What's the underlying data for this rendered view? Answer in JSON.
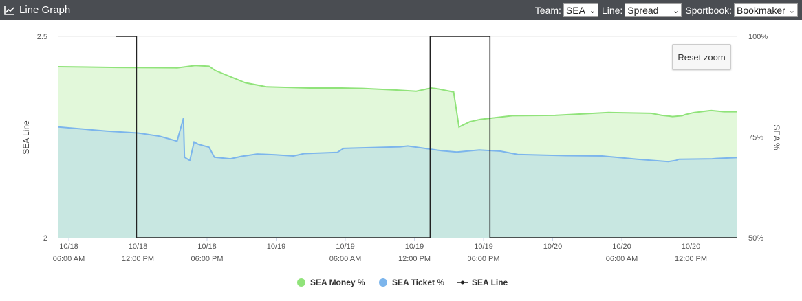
{
  "header": {
    "title": "Line Graph",
    "icon": "line-chart-icon",
    "team_label": "Team:",
    "team_value": "SEA",
    "line_label": "Line:",
    "line_value": "Spread",
    "sportbook_label": "Sportbook:",
    "sportbook_value": "Bookmaker"
  },
  "reset_zoom_label": "Reset zoom",
  "colors": {
    "header_bg": "#4a4d52",
    "money": "#90e37a",
    "money_fill": "#e2f8da",
    "ticket": "#7cb5ec",
    "ticket_fill": "#c8e7e1",
    "line": "#222222"
  },
  "chart_data": {
    "type": "area",
    "x_range_hours": [
      2,
      42
    ],
    "x_ticks": [
      {
        "h": 6,
        "date": "10/18",
        "time": "06:00 AM"
      },
      {
        "h": 12,
        "date": "10/18",
        "time": "12:00 PM"
      },
      {
        "h": 18,
        "date": "10/18",
        "time": "06:00 PM"
      },
      {
        "h": 24,
        "date": "10/19",
        "time": ""
      },
      {
        "h": 30,
        "date": "10/19",
        "time": "06:00 AM"
      },
      {
        "h": 36,
        "date": "10/19",
        "time": "12:00 PM"
      },
      {
        "h": 42,
        "date": "10/19",
        "time": "06:00 PM"
      },
      {
        "h": 48,
        "date": "10/20",
        "time": ""
      },
      {
        "h": 54,
        "date": "10/20",
        "time": "06:00 AM"
      },
      {
        "h": 60,
        "date": "10/20",
        "time": "12:00 PM"
      }
    ],
    "y_left": {
      "title": "SEA Line",
      "range": [
        2,
        2.5
      ],
      "ticks": [
        "2",
        "2.5"
      ]
    },
    "y_right": {
      "title": "SEA %",
      "range": [
        50,
        100
      ],
      "ticks": [
        "50%",
        "75%",
        "100%"
      ]
    },
    "legend": [
      "SEA Money %",
      "SEA Ticket %",
      "SEA Line"
    ],
    "series": [
      {
        "name": "SEA Money %",
        "axis": "right",
        "x": [
          1.5,
          7,
          12.6,
          14.3,
          15.6,
          16.2,
          19,
          21,
          25,
          28,
          30,
          33,
          35,
          36.4,
          37,
          38.5,
          39,
          40,
          41,
          44,
          48,
          53,
          57,
          58,
          58.7,
          59,
          59.9,
          60.2,
          61,
          62.6,
          63.8,
          65
        ],
        "y": [
          92.5,
          92.3,
          92.2,
          92.8,
          92.6,
          91.5,
          88.5,
          87.5,
          87.2,
          87.2,
          87.1,
          86.7,
          86.4,
          87.2,
          87.0,
          86.2,
          77.5,
          78.8,
          79.4,
          80.3,
          80.4,
          81.1,
          80.9,
          80.4,
          80.2,
          80.1,
          80.3,
          80.6,
          81.1,
          81.6,
          81.3,
          81.3
        ]
      },
      {
        "name": "SEA Ticket %",
        "axis": "right",
        "x": [
          1.5,
          6,
          9,
          11,
          12.6,
          13.2,
          13.3,
          13.8,
          14.2,
          14.6,
          15.6,
          16.1,
          17.6,
          18.6,
          20.1,
          21.8,
          23.5,
          24.5,
          27.6,
          28.2,
          33.5,
          34.2,
          37.4,
          38.8,
          40.9,
          42.9,
          44.5,
          49,
          52.4,
          55.7,
          58.6,
          59.3,
          59.6,
          62.7,
          63.1,
          65
        ],
        "y": [
          77.5,
          76.5,
          76.0,
          75.2,
          74.0,
          79.7,
          70.0,
          69.2,
          73.8,
          73.2,
          72.5,
          70.0,
          69.6,
          70.2,
          70.8,
          70.6,
          70.3,
          70.9,
          71.2,
          72.2,
          72.6,
          72.8,
          71.6,
          71.3,
          71.8,
          71.5,
          70.7,
          70.4,
          70.3,
          69.5,
          68.9,
          69.2,
          69.5,
          69.6,
          69.7,
          69.9
        ]
      },
      {
        "name": "SEA Line",
        "axis": "left",
        "x": [
          6.9,
          8.8,
          8.8,
          36.3,
          36.3,
          41.9,
          41.9,
          65
        ],
        "y": [
          2.5,
          2.5,
          2.0,
          2.0,
          2.5,
          2.5,
          2.0,
          2.0
        ]
      }
    ]
  }
}
